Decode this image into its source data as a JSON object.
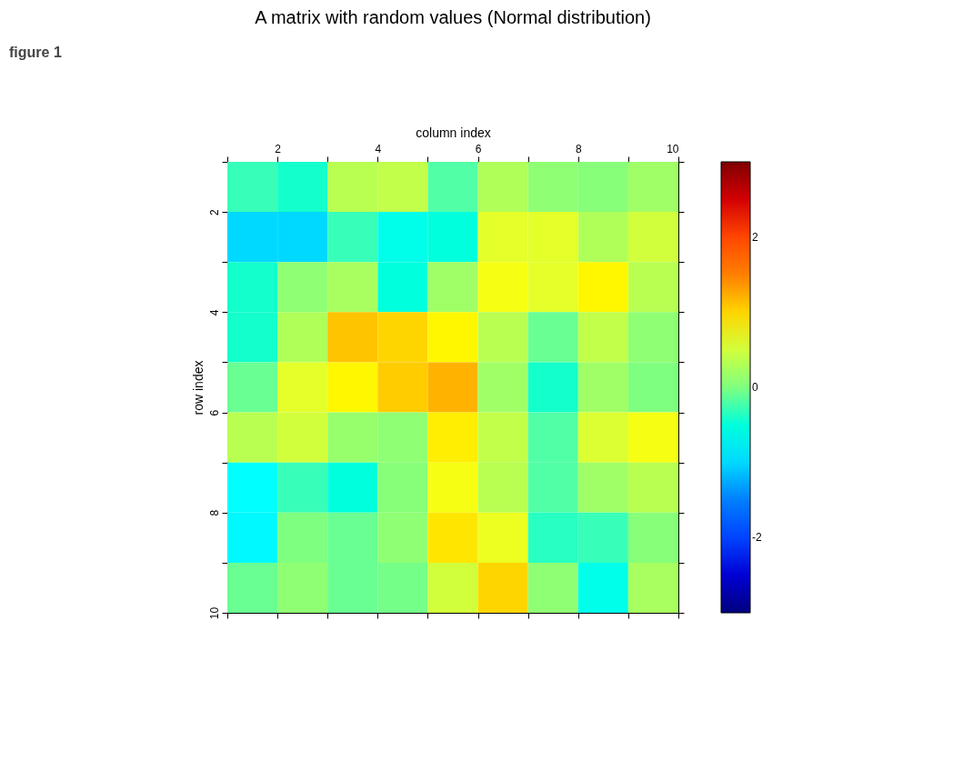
{
  "chart_data": {
    "type": "heatmap",
    "title": "A matrix with random values (Normal distribution)",
    "xlabel": "column index",
    "ylabel": "row index",
    "annotations": [
      "figure 1"
    ],
    "cells": [
      [
        -0.3,
        -0.4,
        0.35,
        0.4,
        -0.2,
        0.3,
        0.1,
        0.05,
        0.2
      ],
      [
        -1.0,
        -1.0,
        -0.3,
        -0.6,
        -0.5,
        0.6,
        0.6,
        0.3,
        0.5
      ],
      [
        -0.4,
        0.1,
        0.25,
        -0.5,
        0.2,
        0.7,
        0.6,
        0.8,
        0.35
      ],
      [
        -0.4,
        0.3,
        1.1,
        1.0,
        0.8,
        0.35,
        -0.1,
        0.4,
        0.1
      ],
      [
        -0.1,
        0.6,
        0.8,
        1.05,
        1.2,
        0.2,
        -0.4,
        0.2,
        0.0
      ],
      [
        0.35,
        0.5,
        0.15,
        0.1,
        0.85,
        0.4,
        -0.2,
        0.55,
        0.7
      ],
      [
        -0.75,
        -0.3,
        -0.5,
        0.05,
        0.7,
        0.35,
        -0.2,
        0.2,
        0.35
      ],
      [
        -0.8,
        0.0,
        -0.1,
        0.1,
        0.9,
        0.65,
        -0.35,
        -0.3,
        0.05
      ],
      [
        -0.1,
        0.1,
        -0.1,
        -0.05,
        0.5,
        1.0,
        0.1,
        -0.6,
        0.25
      ]
    ],
    "xlim": [
      1,
      10
    ],
    "xticks": [
      {
        "value": 1,
        "label": null
      },
      2,
      {
        "value": 3,
        "label": null
      },
      4,
      {
        "value": 5,
        "label": null
      },
      6,
      {
        "value": 7,
        "label": null
      },
      8,
      {
        "value": 9,
        "label": null
      },
      10
    ],
    "ylim": [
      10,
      1
    ],
    "yticks": [
      {
        "value": 1,
        "label": null
      },
      2,
      {
        "value": 3,
        "label": null
      },
      4,
      {
        "value": 5,
        "label": null
      },
      6,
      {
        "value": 7,
        "label": null
      },
      8,
      {
        "value": 9,
        "label": null
      },
      10
    ],
    "clim": [
      -3,
      3
    ],
    "cticks": [
      -2,
      0,
      2
    ],
    "grid": false
  }
}
